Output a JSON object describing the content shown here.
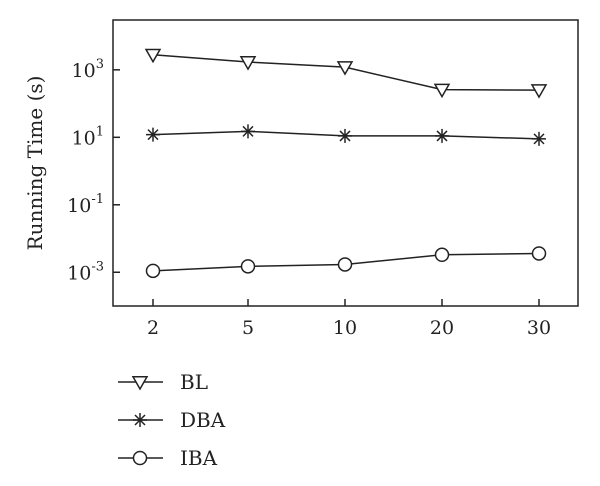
{
  "chart_data": {
    "type": "line",
    "title": "",
    "xlabel": "",
    "ylabel": "Running Time (s)",
    "y_scale": "log",
    "ylim": [
      0.0001,
      30000
    ],
    "categories": [
      "2",
      "5",
      "10",
      "20",
      "30"
    ],
    "y_ticks": [
      {
        "base": "10",
        "exp": "3",
        "value": 1000
      },
      {
        "base": "10",
        "exp": "1",
        "value": 10
      },
      {
        "base": "10",
        "exp": "-1",
        "value": 0.1
      },
      {
        "base": "10",
        "exp": "-3",
        "value": 0.001
      }
    ],
    "legend_position": "bottom-left",
    "grid": false,
    "series": [
      {
        "name": "BL",
        "marker": "triangle-down",
        "values": [
          2800,
          1700,
          1200,
          260,
          250
        ]
      },
      {
        "name": "DBA",
        "marker": "asterisk",
        "values": [
          12,
          15,
          11,
          11,
          9
        ]
      },
      {
        "name": "IBA",
        "marker": "circle",
        "values": [
          0.0011,
          0.0015,
          0.0017,
          0.0033,
          0.0036
        ]
      }
    ],
    "line_color": "#222222"
  }
}
